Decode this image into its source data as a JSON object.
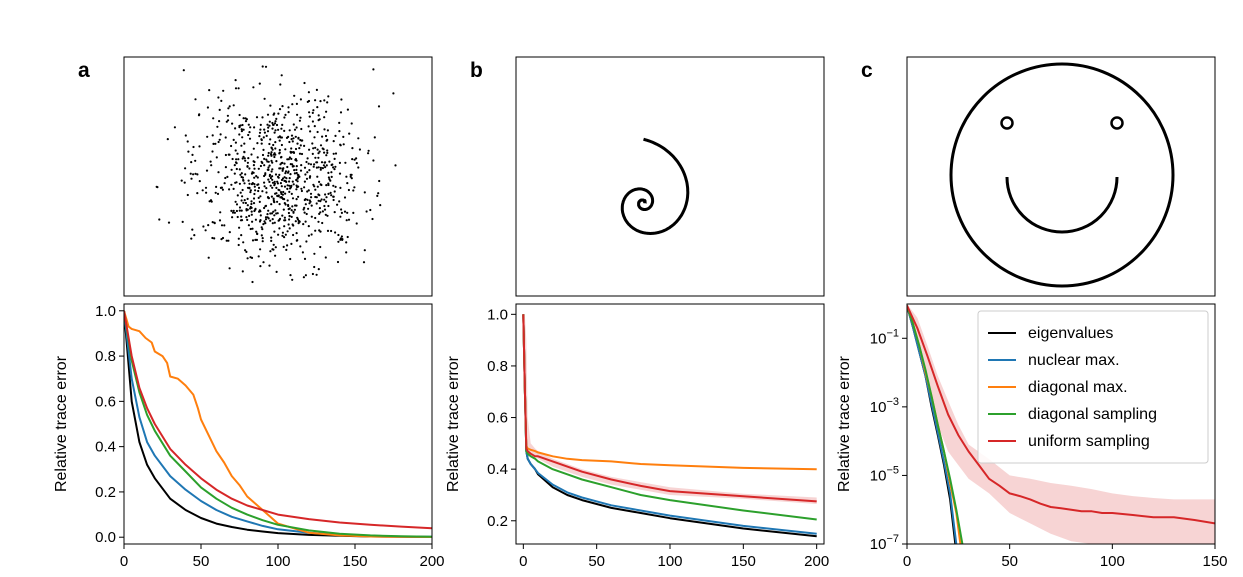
{
  "panel_letters": [
    "a",
    "b",
    "c"
  ],
  "point_sets": [
    {
      "kind": "gaussian_scatter",
      "count": 900,
      "color": "#000000"
    },
    {
      "kind": "spiral",
      "color": "#000000"
    },
    {
      "kind": "smiley_face",
      "color": "#000000"
    }
  ],
  "chart_data": [
    {
      "type": "line",
      "panel": "a",
      "ylabel": "Relative trace error",
      "xlim": [
        0,
        200
      ],
      "ylim": [
        -0.03,
        1.03
      ],
      "xticks": [
        0,
        50,
        100,
        150,
        200
      ],
      "yticks": [
        0.0,
        0.2,
        0.4,
        0.6,
        0.8,
        1.0
      ],
      "ytick_labels": [
        "0.0",
        "0.2",
        "0.4",
        "0.6",
        "0.8",
        "1.0"
      ],
      "series": [
        {
          "color": "#000000",
          "x": [
            0,
            5,
            10,
            15,
            20,
            30,
            40,
            50,
            60,
            70,
            80,
            90,
            100,
            120,
            140,
            160,
            180,
            200
          ],
          "y": [
            1.0,
            0.6,
            0.42,
            0.32,
            0.26,
            0.17,
            0.12,
            0.085,
            0.06,
            0.045,
            0.033,
            0.025,
            0.018,
            0.01,
            0.006,
            0.003,
            0.002,
            0.001
          ]
        },
        {
          "color": "#1f77b4",
          "x": [
            0,
            5,
            10,
            15,
            20,
            30,
            40,
            50,
            60,
            70,
            80,
            90,
            100,
            120,
            140,
            160,
            180,
            200
          ],
          "y": [
            1.0,
            0.7,
            0.53,
            0.42,
            0.36,
            0.27,
            0.21,
            0.16,
            0.12,
            0.09,
            0.07,
            0.05,
            0.035,
            0.02,
            0.01,
            0.005,
            0.003,
            0.002
          ]
        },
        {
          "color": "#ff7f0e",
          "x": [
            0,
            3,
            5,
            10,
            14,
            18,
            20,
            25,
            28,
            30,
            35,
            40,
            45,
            48,
            50,
            55,
            60,
            65,
            70,
            75,
            80,
            85,
            90,
            95,
            100,
            110,
            120,
            140,
            160,
            200
          ],
          "y": [
            1.0,
            0.93,
            0.92,
            0.91,
            0.88,
            0.86,
            0.82,
            0.8,
            0.77,
            0.71,
            0.7,
            0.67,
            0.63,
            0.57,
            0.52,
            0.45,
            0.38,
            0.33,
            0.27,
            0.23,
            0.18,
            0.15,
            0.12,
            0.09,
            0.06,
            0.04,
            0.02,
            0.008,
            0.003,
            0.001
          ]
        },
        {
          "color": "#2ca02c",
          "x": [
            0,
            5,
            10,
            15,
            20,
            30,
            40,
            50,
            60,
            70,
            80,
            90,
            100,
            120,
            140,
            160,
            180,
            200
          ],
          "y": [
            1.0,
            0.78,
            0.64,
            0.54,
            0.47,
            0.36,
            0.29,
            0.22,
            0.17,
            0.13,
            0.1,
            0.075,
            0.055,
            0.03,
            0.015,
            0.008,
            0.004,
            0.002
          ]
        },
        {
          "color": "#d62728",
          "x": [
            0,
            5,
            10,
            15,
            20,
            30,
            40,
            50,
            60,
            70,
            80,
            90,
            100,
            120,
            140,
            160,
            180,
            200
          ],
          "y": [
            1.0,
            0.8,
            0.66,
            0.57,
            0.5,
            0.39,
            0.32,
            0.26,
            0.21,
            0.17,
            0.14,
            0.12,
            0.1,
            0.08,
            0.065,
            0.055,
            0.047,
            0.04
          ]
        }
      ]
    },
    {
      "type": "line",
      "panel": "b",
      "ylabel": "Relative trace error",
      "xlim": [
        -5,
        205
      ],
      "ylim": [
        0.11,
        1.04
      ],
      "xticks": [
        0,
        50,
        100,
        150,
        200
      ],
      "yticks": [
        0.2,
        0.4,
        0.6,
        0.8,
        1.0
      ],
      "ytick_labels": [
        "0.2",
        "0.4",
        "0.6",
        "0.8",
        "1.0"
      ],
      "band": {
        "color": "#d62728",
        "x": [
          0,
          1,
          2,
          3,
          5,
          8,
          10,
          20,
          30,
          40,
          60,
          80,
          100,
          150,
          200
        ],
        "lower": [
          1.0,
          0.85,
          0.55,
          0.48,
          0.46,
          0.45,
          0.44,
          0.41,
          0.39,
          0.37,
          0.34,
          0.32,
          0.3,
          0.285,
          0.265
        ],
        "upper": [
          1.0,
          1.0,
          0.9,
          0.6,
          0.5,
          0.48,
          0.47,
          0.44,
          0.42,
          0.4,
          0.37,
          0.35,
          0.33,
          0.305,
          0.29
        ]
      },
      "series": [
        {
          "color": "#000000",
          "x": [
            0,
            1,
            2,
            3,
            5,
            8,
            10,
            20,
            30,
            40,
            60,
            80,
            100,
            150,
            200
          ],
          "y": [
            1.0,
            0.72,
            0.47,
            0.44,
            0.42,
            0.4,
            0.38,
            0.33,
            0.3,
            0.28,
            0.25,
            0.23,
            0.21,
            0.17,
            0.14
          ]
        },
        {
          "color": "#1f77b4",
          "x": [
            0,
            1,
            2,
            3,
            5,
            8,
            10,
            20,
            30,
            40,
            60,
            80,
            100,
            150,
            200
          ],
          "y": [
            1.0,
            0.72,
            0.47,
            0.44,
            0.42,
            0.4,
            0.385,
            0.34,
            0.31,
            0.29,
            0.26,
            0.24,
            0.22,
            0.18,
            0.15
          ]
        },
        {
          "color": "#ff7f0e",
          "x": [
            0,
            1,
            2,
            3,
            5,
            8,
            10,
            20,
            30,
            40,
            60,
            80,
            100,
            150,
            200
          ],
          "y": [
            1.0,
            0.72,
            0.49,
            0.48,
            0.475,
            0.47,
            0.465,
            0.45,
            0.44,
            0.435,
            0.43,
            0.42,
            0.415,
            0.405,
            0.4
          ]
        },
        {
          "color": "#2ca02c",
          "x": [
            0,
            1,
            2,
            3,
            5,
            8,
            10,
            20,
            30,
            40,
            60,
            80,
            100,
            150,
            200
          ],
          "y": [
            1.0,
            0.72,
            0.47,
            0.46,
            0.45,
            0.44,
            0.43,
            0.4,
            0.38,
            0.36,
            0.33,
            0.3,
            0.28,
            0.24,
            0.205
          ]
        },
        {
          "color": "#d62728",
          "x": [
            0,
            1,
            2,
            3,
            5,
            8,
            10,
            20,
            30,
            40,
            60,
            80,
            100,
            150,
            200
          ],
          "y": [
            1.0,
            0.72,
            0.48,
            0.47,
            0.46,
            0.45,
            0.45,
            0.43,
            0.41,
            0.39,
            0.36,
            0.335,
            0.315,
            0.295,
            0.275
          ]
        }
      ]
    },
    {
      "type": "line",
      "panel": "c",
      "ylabel": "Relative trace error",
      "yscale": "log",
      "xlim": [
        0,
        150
      ],
      "ylim": [
        1e-07,
        1
      ],
      "xticks": [
        0,
        50,
        100,
        150
      ],
      "yticks": [
        1e-07,
        1e-05,
        0.001,
        0.1
      ],
      "ytick_labels": [
        {
          "base": "10",
          "exp": "−7"
        },
        {
          "base": "10",
          "exp": "−5"
        },
        {
          "base": "10",
          "exp": "−3"
        },
        {
          "base": "10",
          "exp": "−1"
        }
      ],
      "legend": {
        "location": "upper right",
        "entries": [
          "eigenvalues",
          "nuclear max.",
          "diagonal max.",
          "diagonal sampling",
          "uniform sampling"
        ]
      },
      "band": {
        "color": "#d62728",
        "x": [
          0,
          5,
          10,
          15,
          20,
          25,
          30,
          40,
          50,
          60,
          70,
          80,
          90,
          100,
          110,
          120,
          130,
          140,
          150
        ],
        "lower": [
          0.9,
          0.08,
          0.004,
          0.0003,
          5e-05,
          2e-05,
          8e-06,
          3e-06,
          8e-07,
          4e-07,
          2e-07,
          1.2e-07,
          1e-07,
          1e-07,
          1e-07,
          1e-07,
          1e-07,
          1e-07,
          1e-07
        ],
        "upper": [
          1,
          0.4,
          0.06,
          0.008,
          0.0015,
          0.0003,
          8e-05,
          3e-05,
          1e-05,
          8e-06,
          6e-06,
          5e-06,
          4e-06,
          3e-06,
          2.5e-06,
          2.2e-06,
          2e-06,
          2e-06,
          2e-06
        ]
      },
      "series": [
        {
          "color": "#000000",
          "x": [
            0,
            3,
            6,
            9,
            12,
            15,
            18,
            21,
            23.5
          ],
          "y": [
            0.9,
            0.2,
            0.04,
            0.008,
            0.001,
            0.00015,
            2e-05,
            2e-06,
            1e-07
          ]
        },
        {
          "color": "#1f77b4",
          "x": [
            0,
            3,
            6,
            9,
            12,
            15,
            18,
            21,
            24
          ],
          "y": [
            0.9,
            0.2,
            0.04,
            0.008,
            0.0012,
            0.00018,
            2.5e-05,
            3e-06,
            1e-07
          ]
        },
        {
          "color": "#ff7f0e",
          "x": [
            0,
            3,
            6,
            9,
            12,
            15,
            18,
            21,
            24,
            26
          ],
          "y": [
            0.9,
            0.25,
            0.06,
            0.01,
            0.002,
            0.0003,
            5e-05,
            6e-06,
            8e-07,
            1e-07
          ]
        },
        {
          "color": "#2ca02c",
          "x": [
            0,
            3,
            6,
            9,
            12,
            15,
            18,
            21,
            24,
            27
          ],
          "y": [
            0.9,
            0.25,
            0.06,
            0.012,
            0.002,
            0.0003,
            5e-05,
            8e-06,
            1e-06,
            1e-07
          ]
        },
        {
          "color": "#d62728",
          "x": [
            0,
            5,
            10,
            15,
            20,
            25,
            30,
            35,
            40,
            45,
            50,
            55,
            60,
            65,
            70,
            75,
            80,
            85,
            90,
            95,
            100,
            110,
            120,
            130,
            140,
            150
          ],
          "y": [
            0.9,
            0.2,
            0.03,
            0.004,
            0.0006,
            0.00015,
            5e-05,
            2e-05,
            8e-06,
            5e-06,
            3e-06,
            2.5e-06,
            2e-06,
            1.5e-06,
            1.2e-06,
            1.1e-06,
            1e-06,
            9e-07,
            9e-07,
            8e-07,
            8e-07,
            7e-07,
            6e-07,
            6e-07,
            5e-07,
            4e-07
          ]
        }
      ]
    }
  ]
}
